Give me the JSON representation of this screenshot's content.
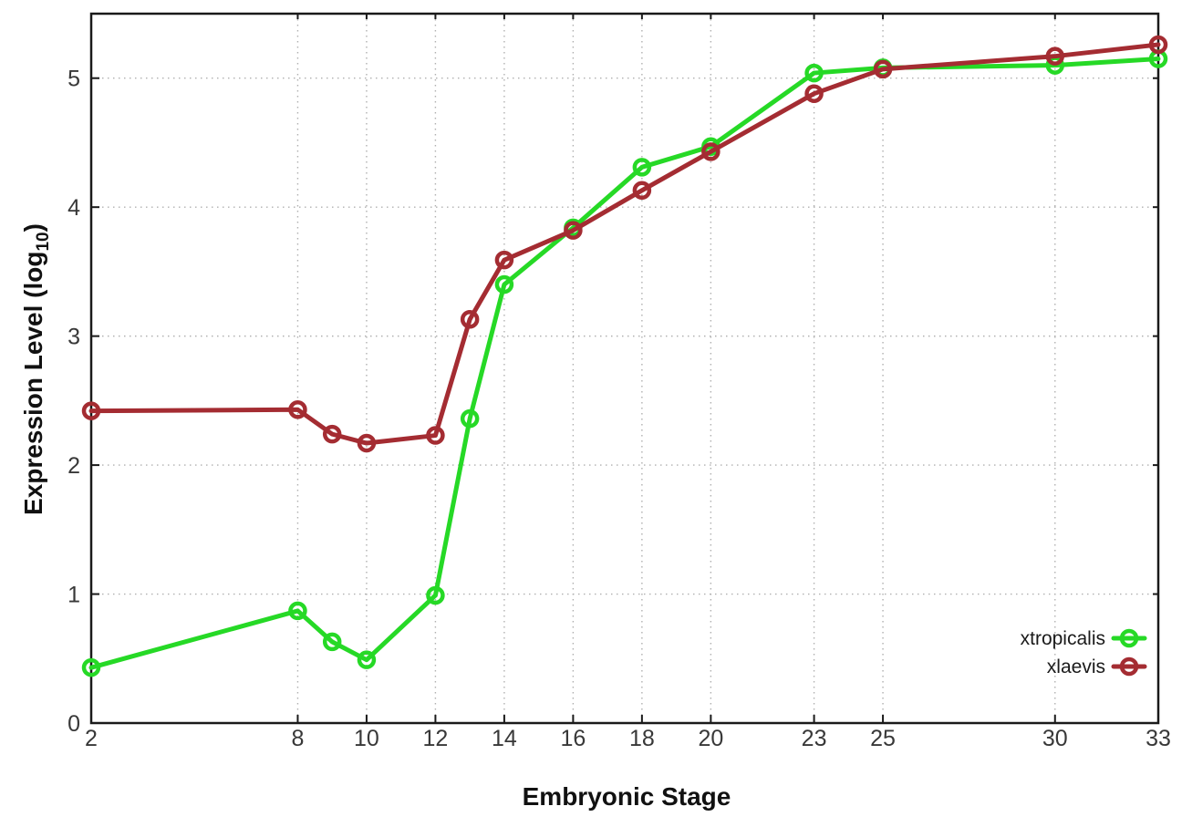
{
  "chart_data": {
    "type": "line",
    "title": "",
    "xlabel": "Embryonic Stage",
    "ylabel": {
      "main": "Expression Level (log",
      "sub": "10",
      "close": ")"
    },
    "x": [
      2,
      8,
      9,
      10,
      12,
      13,
      14,
      16,
      18,
      20,
      23,
      25,
      30,
      33
    ],
    "series": [
      {
        "name": "xtropicalis",
        "color": "#26d926",
        "values": [
          0.43,
          0.87,
          0.63,
          0.49,
          0.99,
          2.36,
          3.4,
          3.84,
          4.31,
          4.47,
          5.04,
          5.08,
          5.1,
          5.15
        ]
      },
      {
        "name": "xlaevis",
        "color": "#a42c32",
        "values": [
          2.42,
          2.43,
          2.24,
          2.17,
          2.23,
          3.13,
          3.59,
          3.82,
          4.13,
          4.43,
          4.88,
          5.07,
          5.17,
          5.26
        ]
      }
    ],
    "x_ticks": [
      2,
      8,
      10,
      12,
      14,
      16,
      18,
      20,
      23,
      25,
      30,
      33
    ],
    "y_ticks": [
      0,
      1,
      2,
      3,
      4,
      5
    ],
    "xlim": [
      2,
      33
    ],
    "ylim": [
      0,
      5.5
    ],
    "grid": true,
    "legend_position": "inside-right-bottom",
    "marker": "open-circle"
  },
  "colors": {
    "border": "#1a1a1a",
    "grid": "#b0b0b0",
    "tick_text": "#383838"
  }
}
